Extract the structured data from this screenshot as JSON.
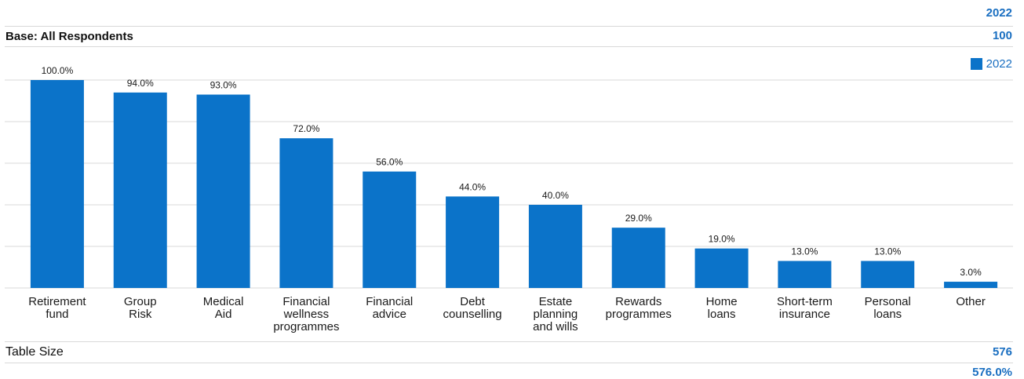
{
  "header": {
    "year": "2022",
    "base_label": "Base: All Respondents",
    "base_value": "100"
  },
  "legend": {
    "label": "2022",
    "color": "#0b73c9"
  },
  "footer": {
    "table_size_label": "Table Size",
    "table_size_value": "576",
    "table_size_percent": "576.0%"
  },
  "chart_data": {
    "type": "bar",
    "categories": [
      [
        "Retirement",
        "fund"
      ],
      [
        "Group",
        "Risk"
      ],
      [
        "Medical",
        "Aid"
      ],
      [
        "Financial",
        "wellness",
        "programmes"
      ],
      [
        "Financial",
        "advice"
      ],
      [
        "Debt",
        "counselling"
      ],
      [
        "Estate",
        "planning",
        "and wills"
      ],
      [
        "Rewards",
        "programmes"
      ],
      [
        "Home",
        "loans"
      ],
      [
        "Short-term",
        "insurance"
      ],
      [
        "Personal",
        "loans"
      ],
      [
        "Other"
      ]
    ],
    "series": [
      {
        "name": "2022",
        "values": [
          100.0,
          94.0,
          93.0,
          72.0,
          56.0,
          44.0,
          40.0,
          29.0,
          19.0,
          13.0,
          13.0,
          3.0
        ],
        "labels": [
          "100.0%",
          "94.0%",
          "93.0%",
          "72.0%",
          "56.0%",
          "44.0%",
          "40.0%",
          "29.0%",
          "19.0%",
          "13.0%",
          "13.0%",
          "3.0%"
        ]
      }
    ],
    "ylim": [
      0,
      100
    ],
    "grid": true,
    "legend_position": "top-right",
    "bar_color": "#0b73c9"
  }
}
